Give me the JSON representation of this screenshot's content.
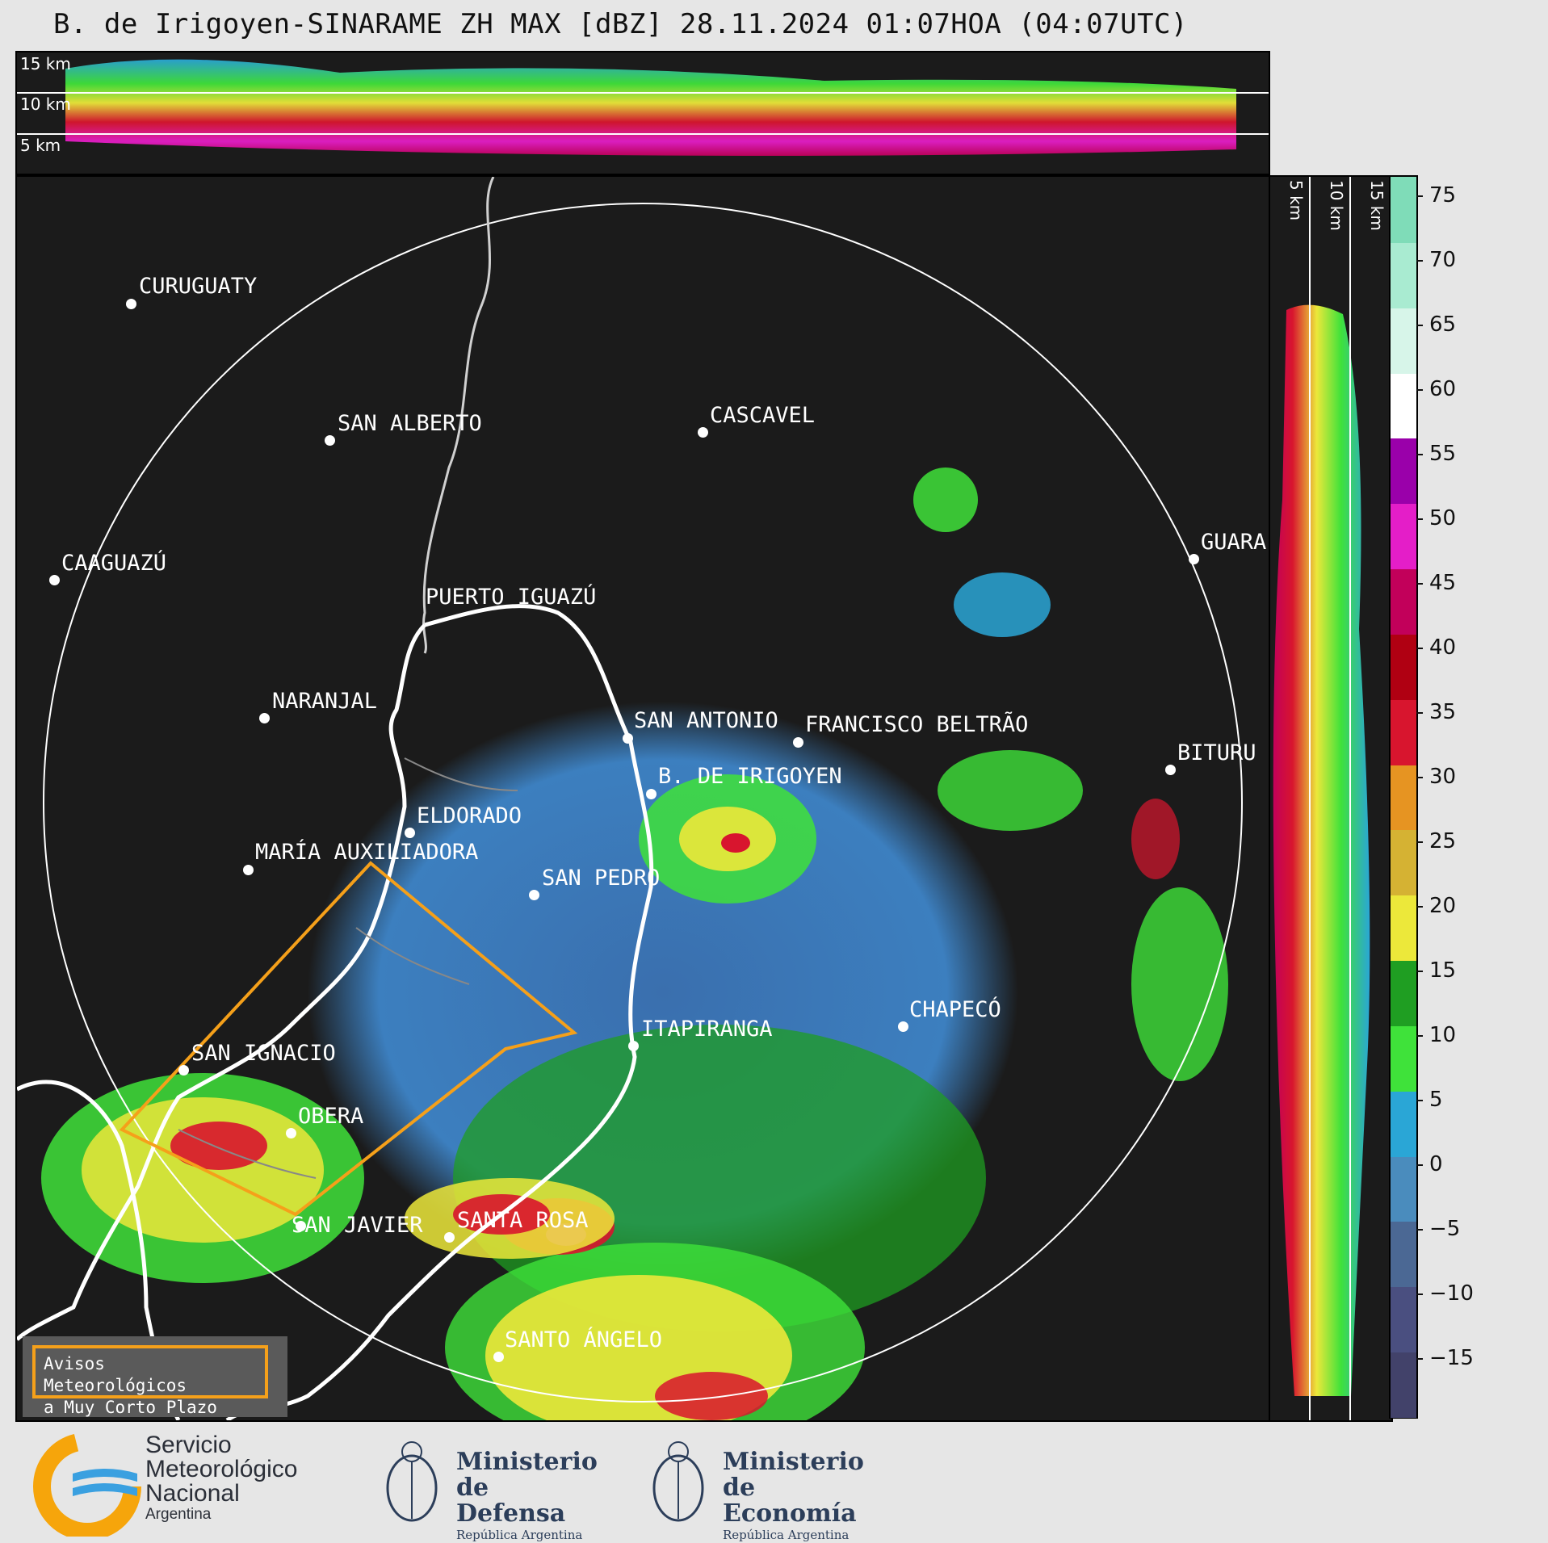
{
  "title": "B. de Irigoyen-SINARAME ZH MAX [dBZ] 28.11.2024 01:07HOA (04:07UTC)",
  "top_panel": {
    "height_labels": [
      "15 km",
      "10 km",
      "5 km"
    ]
  },
  "side_panel": {
    "height_labels": [
      "5 km",
      "10 km",
      "15 km"
    ]
  },
  "cities": [
    {
      "name": "CURUGUATY"
    },
    {
      "name": "SAN ALBERTO"
    },
    {
      "name": "CAAGUAZÚ"
    },
    {
      "name": "CASCAVEL"
    },
    {
      "name": "GUARA"
    },
    {
      "name": "PUERTO IGUAZÚ"
    },
    {
      "name": "NARANJAL"
    },
    {
      "name": "SAN ANTONIO"
    },
    {
      "name": "FRANCISCO BELTRÃO"
    },
    {
      "name": "BITURU"
    },
    {
      "name": "B. DE IRIGOYEN"
    },
    {
      "name": "ELDORADO"
    },
    {
      "name": "MARÍA AUXILIADORA"
    },
    {
      "name": "SAN PEDRO"
    },
    {
      "name": "CHAPECÓ"
    },
    {
      "name": "ITAPIRANGA"
    },
    {
      "name": "SAN IGNACIO"
    },
    {
      "name": "OBERA"
    },
    {
      "name": "SAN JAVIER"
    },
    {
      "name": "SANTA ROSA"
    },
    {
      "name": "SANTO ÁNGELO"
    }
  ],
  "colorbar": {
    "unit": "dBZ",
    "ticks": [
      "75",
      "70",
      "65",
      "60",
      "55",
      "50",
      "45",
      "40",
      "35",
      "30",
      "25",
      "20",
      "15",
      "10",
      "5",
      "0",
      "−5",
      "−10",
      "−15"
    ],
    "colors": [
      "#42426a",
      "#4a4f80",
      "#4b6894",
      "#4a8cbd",
      "#2aa6d6",
      "#3fe23a",
      "#1f9e22",
      "#ece83a",
      "#d5b233",
      "#e69422",
      "#d8152e",
      "#b00012",
      "#c2005a",
      "#e41ec8",
      "#9a00aa",
      "#ffffff",
      "#d7f5e9",
      "#a9ebd1",
      "#7fdcb8"
    ]
  },
  "aviso": {
    "line1": "Avisos Meteorológicos",
    "line2": "a Muy Corto Plazo"
  },
  "footer": {
    "smn_line1": "Servicio",
    "smn_line2": "Meteorológico",
    "smn_line3": "Nacional",
    "smn_line4": "Argentina",
    "defensa_line1": "Ministerio",
    "defensa_line2": "de Defensa",
    "defensa_line3": "República Argentina",
    "economia_line1": "Ministerio",
    "economia_line2": "de Economía",
    "economia_line3": "República Argentina"
  }
}
